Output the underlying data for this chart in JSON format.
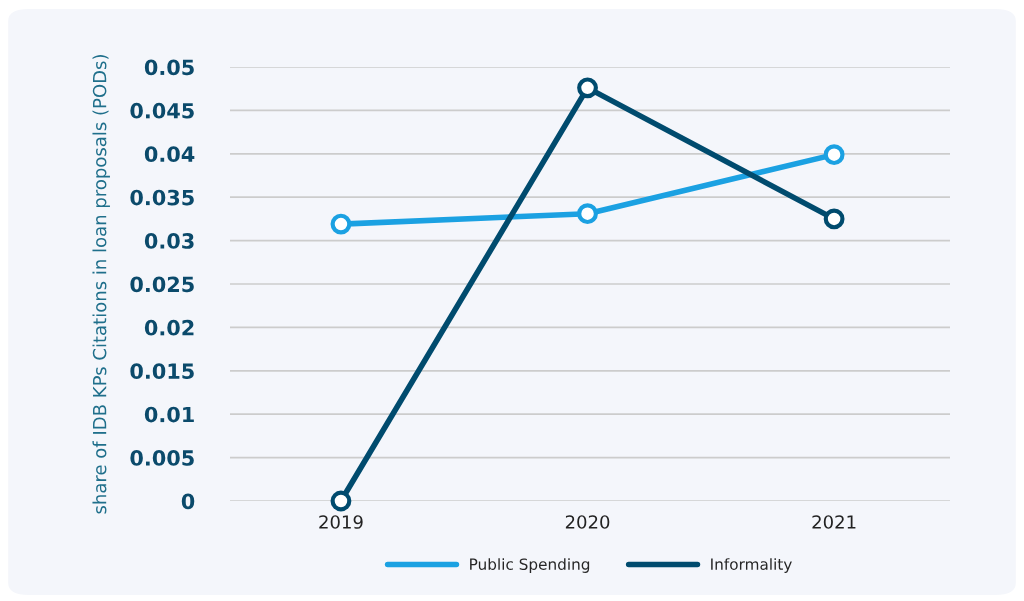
{
  "chart_data": {
    "type": "line",
    "ylabel": "share of IDB KPs Citations in loan proposals (PODs)",
    "categories": [
      "2019",
      "2020",
      "2021"
    ],
    "series": [
      {
        "name": "Public Spending",
        "color": "#1ba1e2",
        "values": [
          0.0319,
          0.0331,
          0.0399
        ]
      },
      {
        "name": "Informality",
        "color": "#004b6e",
        "values": [
          0,
          0.0476,
          0.0325
        ]
      }
    ],
    "ylim": [
      0,
      0.05
    ],
    "yticks": [
      0,
      0.005,
      0.01,
      0.015,
      0.02,
      0.025,
      0.03,
      0.035,
      0.04,
      0.045,
      0.05
    ],
    "grid": "y",
    "legend": "bottom",
    "marker": "circle",
    "line_style": "solid"
  }
}
